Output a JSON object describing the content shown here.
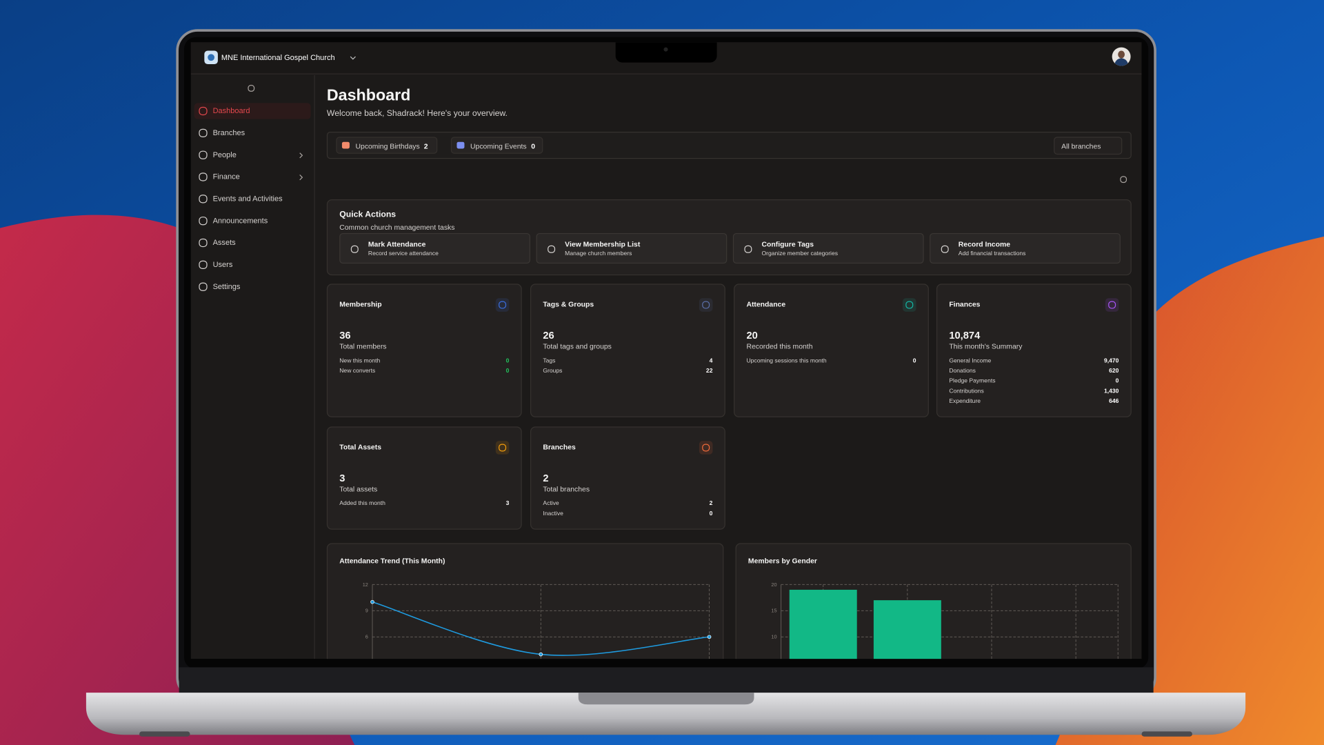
{
  "header": {
    "organization": "MNE International Gospel Church"
  },
  "sidebar": {
    "active_index": 0,
    "items": [
      {
        "label": "Dashboard"
      },
      {
        "label": "Branches"
      },
      {
        "label": "People",
        "has_submenu": true
      },
      {
        "label": "Finance",
        "has_submenu": true
      },
      {
        "label": "Events and Activities"
      },
      {
        "label": "Announcements"
      },
      {
        "label": "Assets"
      },
      {
        "label": "Users"
      },
      {
        "label": "Settings"
      }
    ]
  },
  "page": {
    "title": "Dashboard",
    "subtitle": "Welcome back, Shadrack! Here's your overview."
  },
  "summary_bar": {
    "badges": [
      {
        "label": "Upcoming Birthdays",
        "count": 2
      },
      {
        "label": "Upcoming Events",
        "count": 0
      }
    ],
    "branch_filter": "All branches"
  },
  "quick_actions": {
    "title": "Quick Actions",
    "subtitle": "Common church management tasks",
    "actions": [
      {
        "title": "Mark Attendance",
        "description": "Record service attendance"
      },
      {
        "title": "View Membership List",
        "description": "Manage church members"
      },
      {
        "title": "Configure Tags",
        "description": "Organize member categories"
      },
      {
        "title": "Record Income",
        "description": "Add financial transactions"
      }
    ]
  },
  "cards": [
    {
      "title": "Membership",
      "value": 36,
      "label": "Total members",
      "accent": "#3b6fe0",
      "rows": [
        {
          "label": "New this month",
          "value": 0,
          "color": "#22c55e"
        },
        {
          "label": "New converts",
          "value": 0,
          "color": "#22c55e"
        }
      ]
    },
    {
      "title": "Tags & Groups",
      "value": 26,
      "label": "Total tags and groups",
      "accent": "#5b6fa8",
      "rows": [
        {
          "label": "Tags",
          "value": 4
        },
        {
          "label": "Groups",
          "value": 22
        }
      ]
    },
    {
      "title": "Attendance",
      "value": 20,
      "label": "Recorded this month",
      "accent": "#14b8a6",
      "rows": [
        {
          "label": "Upcoming sessions this month",
          "value": 0
        }
      ]
    },
    {
      "title": "Finances",
      "value": "10,874",
      "label": "This month's Summary",
      "accent": "#a855f7",
      "rows": [
        {
          "label": "General Income",
          "value": "9,470"
        },
        {
          "label": "Donations",
          "value": 620
        },
        {
          "label": "Pledge Payments",
          "value": 0
        },
        {
          "label": "Contributions",
          "value": "1,430"
        },
        {
          "label": "Expenditure",
          "value": 646
        }
      ]
    },
    {
      "title": "Total Assets",
      "value": 3,
      "label": "Total assets",
      "accent": "#f59e0b",
      "rows": [
        {
          "label": "Added this month",
          "value": 3
        }
      ]
    },
    {
      "title": "Branches",
      "value": 2,
      "label": "Total branches",
      "accent": "#f26b3a",
      "rows": [
        {
          "label": "Active",
          "value": 2
        },
        {
          "label": "Inactive",
          "value": 0
        }
      ]
    }
  ],
  "charts": [
    {
      "type": "line",
      "title": "Attendance Trend (This Month)",
      "color": "#1e9be0",
      "values": [
        10,
        4,
        6
      ],
      "ylim": [
        0,
        12
      ],
      "yticks": [
        6,
        9,
        12
      ],
      "grid": true
    },
    {
      "type": "bar",
      "title": "Members by Gender",
      "color": "#12b886",
      "values": [
        19,
        17,
        0,
        0
      ],
      "ylim": [
        0,
        20
      ],
      "yticks": [
        10,
        15,
        20
      ],
      "grid": true
    }
  ]
}
